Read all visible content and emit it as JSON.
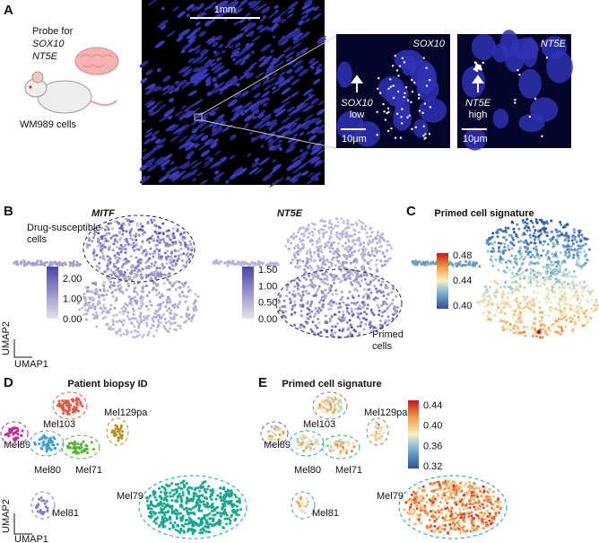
{
  "panel_a": {
    "letter": "A",
    "probe_label": "Probe for",
    "genes": [
      "SOX10",
      "NT5E"
    ],
    "cell_line": "WM989 cells",
    "scale_bar": "1mm",
    "insets": [
      {
        "gene": "SOX10",
        "arrow_gene": "SOX10",
        "arrow_level": "low",
        "scale": "10μm"
      },
      {
        "gene": "NT5E",
        "arrow_gene": "NT5E",
        "arrow_level": "high",
        "scale": "10μm"
      }
    ]
  },
  "panel_b": {
    "letter": "B",
    "plots": [
      {
        "title": "MITF",
        "colorbar_ticks": [
          "2.00",
          "1.00",
          "0.00"
        ],
        "annotation": [
          "Drug-susceptible",
          "cells"
        ]
      },
      {
        "title": "NT5E",
        "colorbar_ticks": [
          "1.50",
          "1.00",
          "0.50",
          "0.00"
        ],
        "annotation": [
          "Primed",
          "cells"
        ]
      }
    ],
    "axis_y": "UMAP2",
    "axis_x": "UMAP1"
  },
  "panel_c": {
    "letter": "C",
    "title": "Primed cell signature",
    "colorbar_ticks": [
      "0.48",
      "0.44",
      "0.40"
    ]
  },
  "panel_d": {
    "letter": "D",
    "title": "Patient biopsy ID",
    "clusters": [
      "Mel103",
      "Mel89",
      "Mel129pa",
      "Mel80",
      "Mel71",
      "Mel81",
      "Mel79"
    ],
    "axis_y": "UMAP2",
    "axis_x": "UMAP1"
  },
  "panel_e": {
    "letter": "E",
    "title": "Primed cell signature",
    "colorbar_ticks": [
      "0.44",
      "0.40",
      "0.36",
      "0.32"
    ],
    "clusters": [
      "Mel103",
      "Mel89",
      "Mel129pa",
      "Mel80",
      "Mel71",
      "Mel81",
      "Mel79"
    ]
  }
}
